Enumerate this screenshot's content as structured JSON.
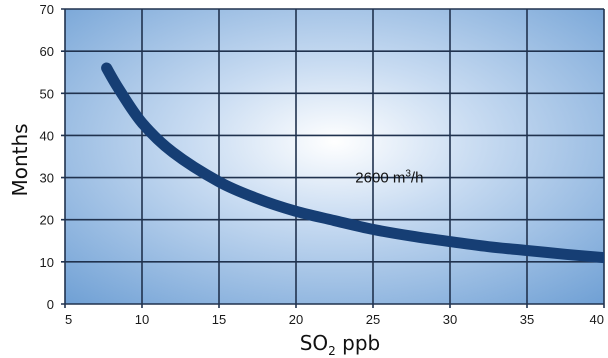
{
  "chart_data": {
    "type": "line",
    "title": "",
    "xlabel": "SO",
    "xlabel_sub": "2",
    "xlabel_unit": " ppb",
    "ylabel": "Months",
    "xlim": [
      5,
      40
    ],
    "ylim": [
      0,
      70
    ],
    "x_ticks": [
      5,
      10,
      15,
      20,
      25,
      30,
      35,
      40
    ],
    "y_ticks": [
      0,
      10,
      20,
      30,
      40,
      50,
      60,
      70
    ],
    "grid": true,
    "series": [
      {
        "name": "2600 m³/h",
        "x": [
          7.7,
          8.5,
          10,
          12,
          15,
          17.5,
          20,
          22.5,
          25,
          27.5,
          30,
          32.5,
          35,
          37.5,
          40
        ],
        "y": [
          56,
          51,
          43,
          36,
          29,
          25,
          22,
          19.8,
          17.7,
          16.1,
          14.8,
          13.6,
          12.7,
          11.8,
          11
        ]
      }
    ],
    "annotations": [
      {
        "base": "2600 m",
        "sup": "3",
        "tail": "/h",
        "x": 24.5,
        "y": 25
      }
    ],
    "colors": {
      "line": "#163e74",
      "grid": "#20324e",
      "bg_center": "#ffffff",
      "bg_edge": "#6e9fd4",
      "title": "#243f8e"
    }
  }
}
